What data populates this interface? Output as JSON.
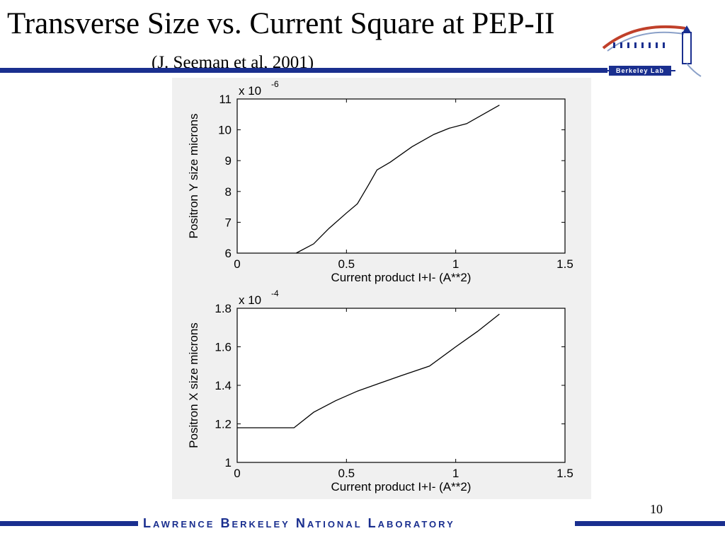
{
  "slide": {
    "title": "Transverse Size vs. Current Square at PEP-II",
    "subtitle": "(J. Seeman et al, 2001)",
    "page_number": "10",
    "footer": "Lawrence Berkeley National Laboratory",
    "logo_text": "Berkeley Lab",
    "accent_color": "#1a2f8f"
  },
  "chart_data": [
    {
      "type": "line",
      "xlabel": "Current product I+I- (A**2)",
      "ylabel": "Positron Y size microns",
      "multiplier": "x 10",
      "multiplier_exp": "-6",
      "xlim": [
        0,
        1.5
      ],
      "ylim": [
        6,
        11
      ],
      "xticks": [
        "0",
        "0.5",
        "1",
        "1.5"
      ],
      "yticks": [
        "6",
        "7",
        "8",
        "9",
        "10",
        "11"
      ],
      "x": [
        0.27,
        0.35,
        0.42,
        0.5,
        0.55,
        0.6,
        0.64,
        0.7,
        0.8,
        0.9,
        0.97,
        1.05,
        1.2
      ],
      "y": [
        6.0,
        6.3,
        6.8,
        7.3,
        7.6,
        8.2,
        8.7,
        8.95,
        9.45,
        9.85,
        10.05,
        10.2,
        10.8
      ],
      "grid": false
    },
    {
      "type": "line",
      "xlabel": "Current product I+I- (A**2)",
      "ylabel": "Positron X size microns",
      "multiplier": "x 10",
      "multiplier_exp": "-4",
      "xlim": [
        0,
        1.5
      ],
      "ylim": [
        1.0,
        1.8
      ],
      "xticks": [
        "0",
        "0.5",
        "1",
        "1.5"
      ],
      "yticks": [
        "1",
        "1.2",
        "1.4",
        "1.6",
        "1.8"
      ],
      "x": [
        0,
        0.26,
        0.35,
        0.45,
        0.55,
        0.65,
        0.75,
        0.88,
        1.0,
        1.1,
        1.2
      ],
      "y": [
        1.18,
        1.18,
        1.26,
        1.32,
        1.37,
        1.41,
        1.45,
        1.5,
        1.6,
        1.68,
        1.77
      ],
      "grid": false
    }
  ]
}
